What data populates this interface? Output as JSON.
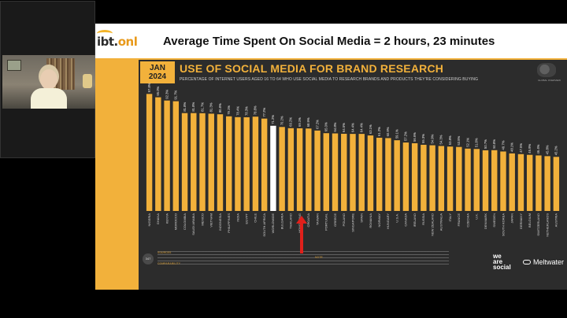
{
  "meeting": {
    "participant_video": "webcam-feed"
  },
  "slide": {
    "logo": {
      "text_main": "ibt.",
      "text_accent": "onl",
      "tagline": ""
    },
    "headline": "Average Time Spent On Social Media = 2 hours, 23 minutes",
    "card": {
      "date_month": "JAN",
      "date_year": "2024",
      "title": "USE OF SOCIAL MEDIA FOR BRAND RESEARCH",
      "subtitle": "PERCENTAGE OF INTERNET USERS AGED 16 TO 64 WHO USE SOCIAL MEDIA TO RESEARCH BRANDS AND PRODUCTS THEY'RE CONSIDERING BUYING",
      "globe_caption": "GLOBAL OVERVIEW",
      "page_number": "347",
      "footer_tags": [
        "SOURCES",
        "NOTE",
        "COMPARABILITY"
      ],
      "brand_wearesocial": "we\nare\nsocial",
      "brand_meltwater": "Meltwater"
    },
    "colors": {
      "accent": "#f2b13b",
      "card_bg": "#2c2c2c",
      "highlight_bar": "#ffffff",
      "arrow": "#e0201b"
    }
  },
  "chart_data": {
    "type": "bar",
    "ylim": [
      0,
      100
    ],
    "highlight_index": 14,
    "categories": [
      "NIGERIA",
      "GHANA",
      "KENYA",
      "MOROCCO",
      "COLOMBIA",
      "SAUDI ARABIA",
      "MEXICO",
      "VIETNAM",
      "INDONESIA",
      "PHILIPPINES",
      "INDIA",
      "EGYPT",
      "CHILE",
      "SOUTH AFRICA",
      "WORLDWIDE",
      "BULGARIA",
      "THAILAND",
      "HONG KONG",
      "CROATIA",
      "TAIWAN",
      "PORTUGAL",
      "GREECE",
      "POLAND",
      "SINGAPORE",
      "SPAIN",
      "ROMANIA",
      "NORWAY",
      "HUNGARY",
      "U.S.A.",
      "CANADA",
      "IRELAND",
      "RUSSIA",
      "NEW ZEALAND",
      "AUSTRALIA",
      "ITALY",
      "FRANCE",
      "CZECHIA",
      "U.K.",
      "DENMARK",
      "SWEDEN",
      "SOUTH KOREA",
      "JAPAN",
      "GERMANY",
      "BELGIUM",
      "SWITZERLAND",
      "NETHERLANDS",
      "AUSTRIA"
    ],
    "series": [
      {
        "values": [
          97.8,
          95.0,
          92.3,
          91.7,
          81.8,
          81.8,
          81.7,
          81.3,
          80.8,
          79.1,
          78.4,
          78.3,
          78.8,
          77.2,
          71.2,
          70.2,
          69.2,
          69.1,
          68.9,
          67.2,
          65.0,
          64.8,
          64.5,
          64.4,
          64.4,
          63.1,
          61.2,
          60.9,
          59.1,
          57.2,
          56.6,
          55.3,
          54.9,
          54.3,
          53.8,
          53.5,
          52.1,
          51.8,
          50.7,
          50.8,
          49.7,
          48.1,
          47.5,
          46.9,
          46.4,
          45.8,
          45.2
        ]
      }
    ]
  }
}
